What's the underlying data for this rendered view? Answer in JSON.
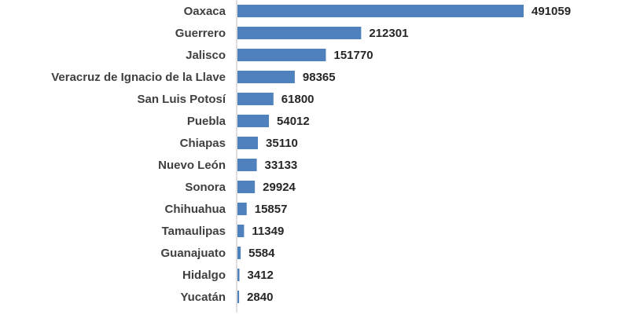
{
  "chart_data": {
    "type": "bar",
    "orientation": "horizontal",
    "title": "",
    "xlabel": "",
    "ylabel": "",
    "categories": [
      "Oaxaca",
      "Guerrero",
      "Jalisco",
      "Veracruz de Ignacio de la Llave",
      "San Luis Potosí",
      "Puebla",
      "Chiapas",
      "Nuevo León",
      "Sonora",
      "Chihuahua",
      "Tamaulipas",
      "Guanajuato",
      "Hidalgo",
      "Yucatán"
    ],
    "values": [
      491059,
      212301,
      151770,
      98365,
      61800,
      54012,
      35110,
      33133,
      29924,
      15857,
      11349,
      5584,
      3412,
      2840
    ],
    "value_labels": [
      "491059",
      "212301",
      "151770",
      "98365",
      "61800",
      "54012",
      "35110",
      "33133",
      "29924",
      "15857",
      "11349",
      "5584",
      "3412",
      "2840"
    ],
    "xlim": [
      0,
      491059
    ],
    "grid": false,
    "legend": "none",
    "data_labels": "outside-end",
    "bar_color": "#4f81bd",
    "axis_color": "#bfbfbf"
  }
}
